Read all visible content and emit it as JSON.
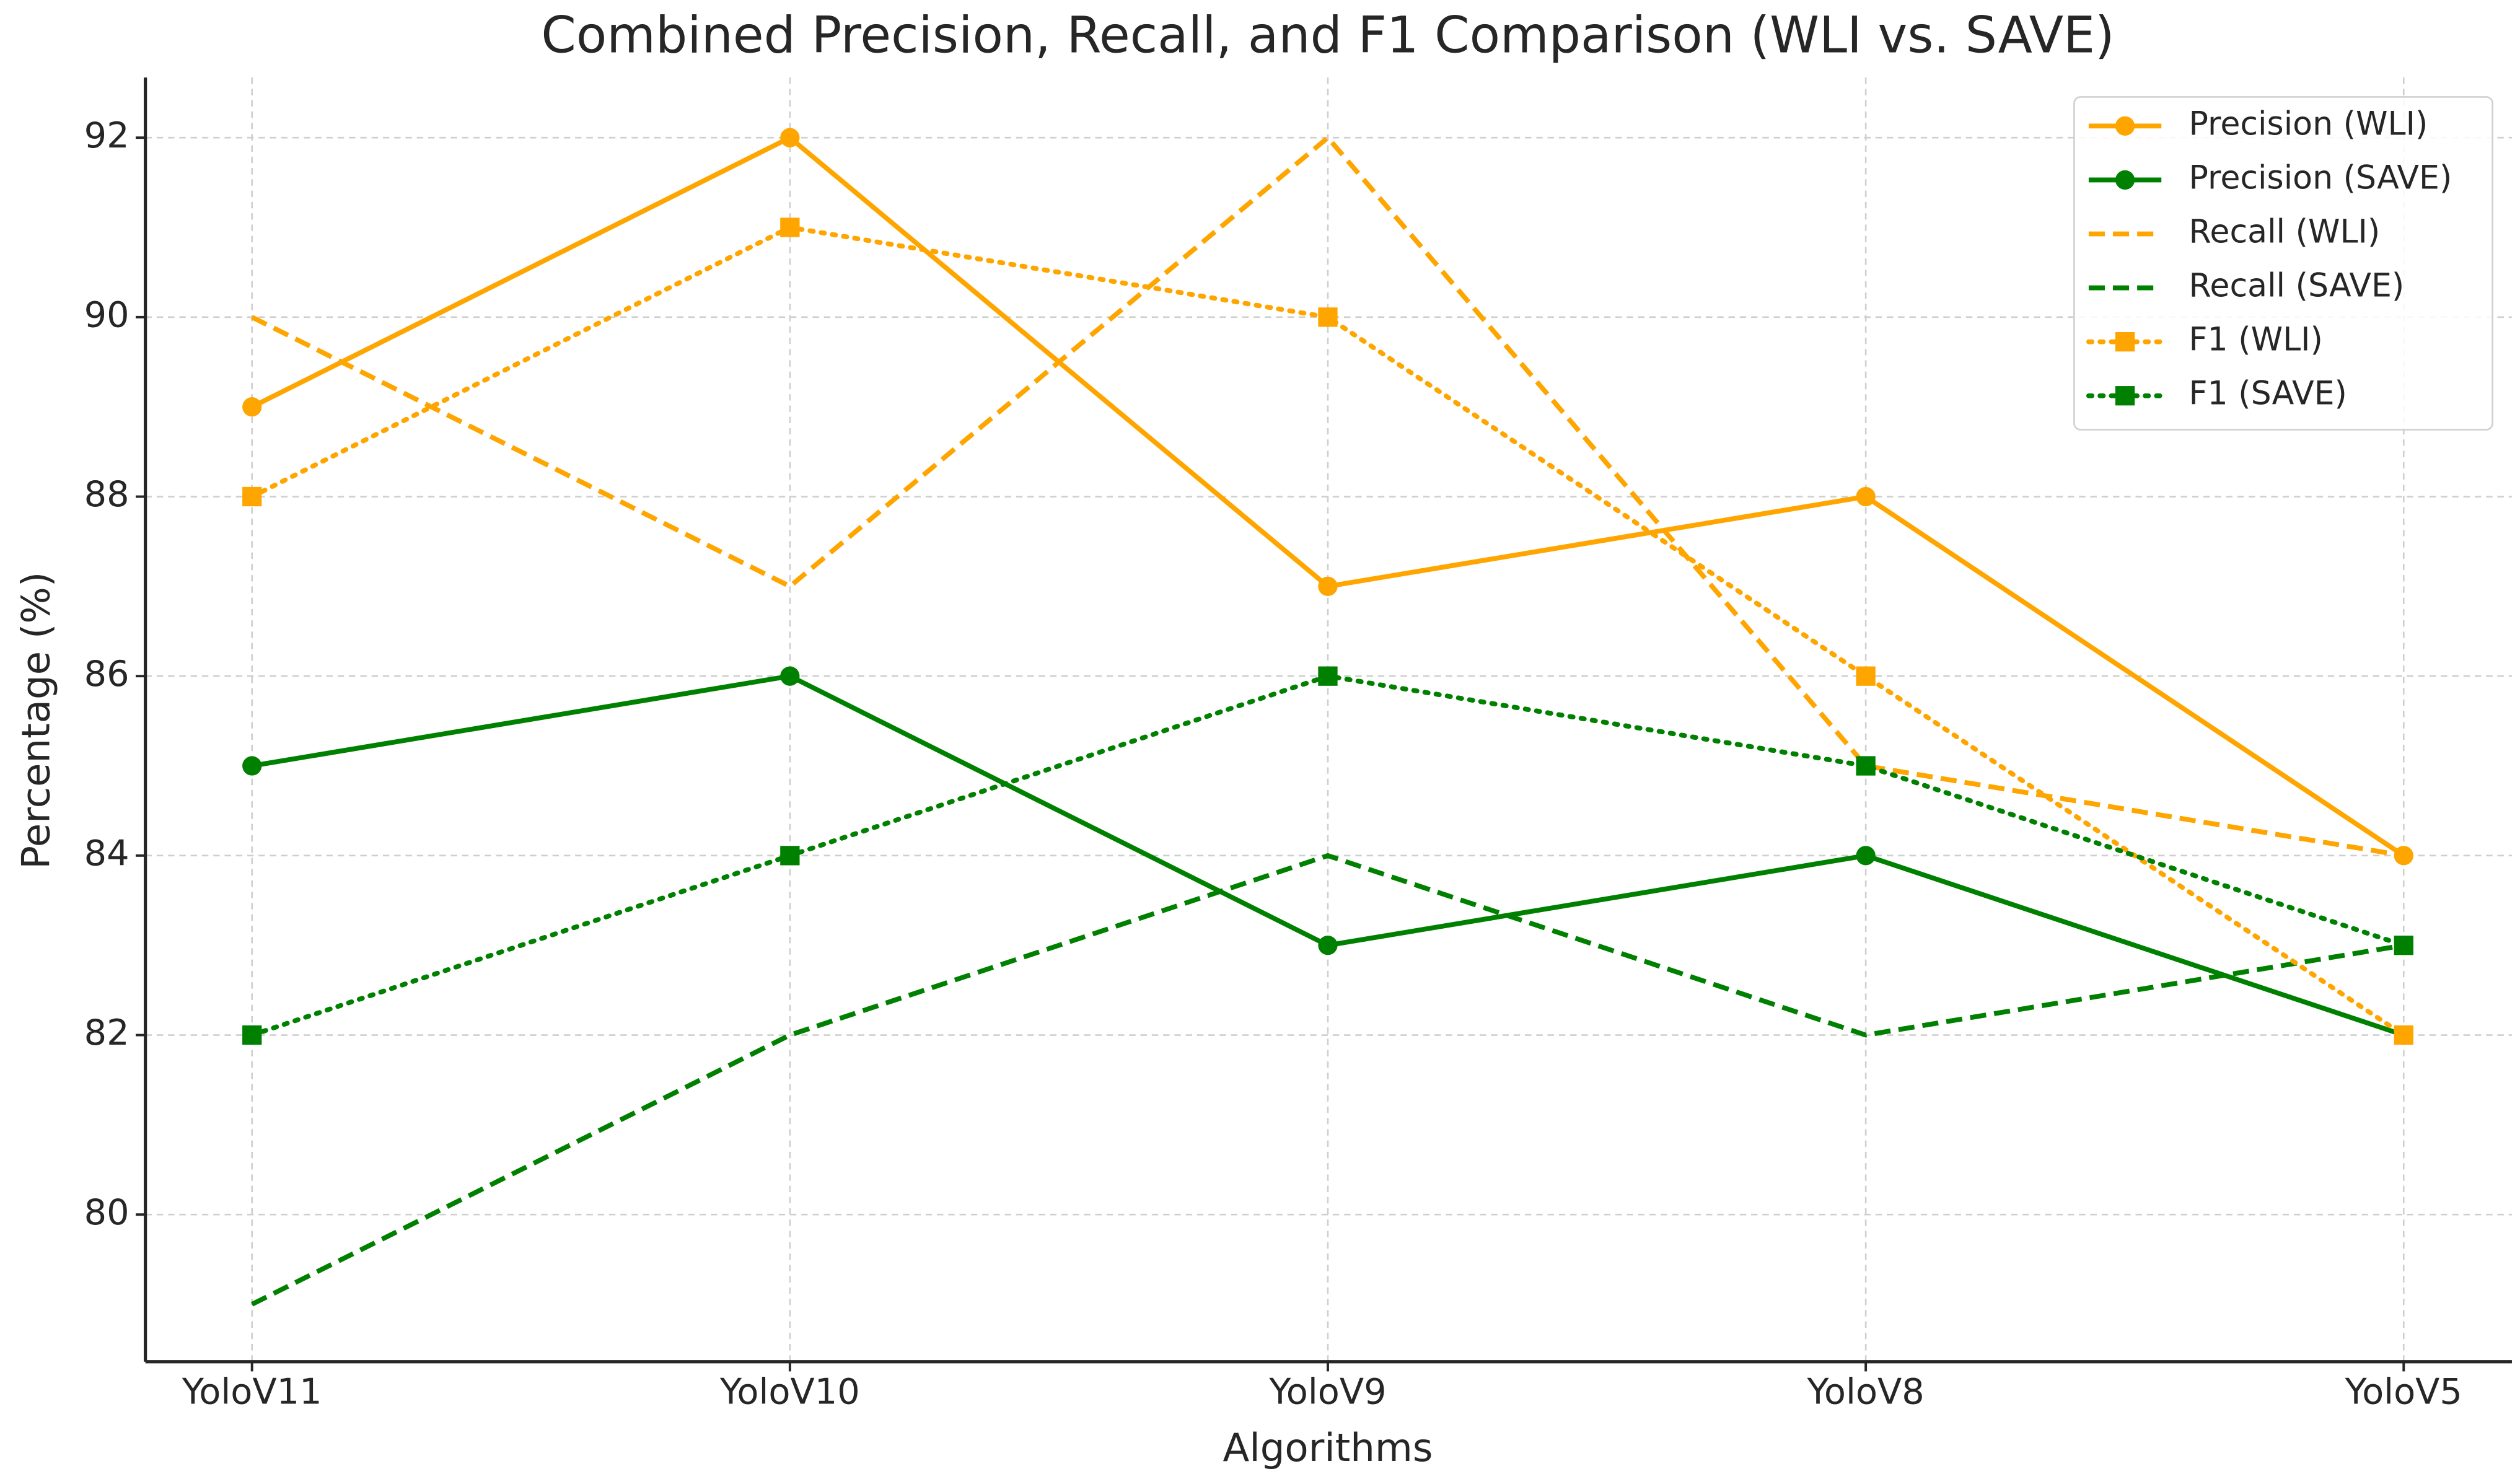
{
  "chart_data": {
    "type": "line",
    "title": "Combined Precision, Recall, and F1 Comparison (WLI vs. SAVE)",
    "x_label": "Algorithms",
    "y_label": "Percentage (%)",
    "categories": [
      "YoloV11",
      "YoloV10",
      "YoloV9",
      "YoloV8",
      "YoloV5"
    ],
    "series": [
      {
        "name": "Precision (WLI)",
        "color": "#ffa500",
        "linestyle": "solid",
        "marker": "circle",
        "values": [
          89,
          92,
          87,
          88,
          84
        ]
      },
      {
        "name": "Precision (SAVE)",
        "color": "#008000",
        "linestyle": "solid",
        "marker": "circle",
        "values": [
          85,
          86,
          83,
          84,
          82
        ]
      },
      {
        "name": "Recall (WLI)",
        "color": "#ffa500",
        "linestyle": "dashed",
        "marker": "none",
        "values": [
          90,
          87,
          92,
          85,
          84
        ]
      },
      {
        "name": "Recall (SAVE)",
        "color": "#008000",
        "linestyle": "dashed",
        "marker": "none",
        "values": [
          79,
          82,
          84,
          82,
          83
        ]
      },
      {
        "name": "F1 (WLI)",
        "color": "#ffa500",
        "linestyle": "dotted",
        "marker": "square",
        "values": [
          88,
          91,
          90,
          86,
          82
        ]
      },
      {
        "name": "F1 (SAVE)",
        "color": "#008000",
        "linestyle": "dotted",
        "marker": "square",
        "values": [
          82,
          84,
          86,
          85,
          83
        ]
      }
    ],
    "ylim": [
      78.36,
      92.67
    ],
    "yticks": [
      80,
      82,
      84,
      86,
      88,
      90,
      92
    ],
    "grid": true,
    "legend_position": "upper right"
  }
}
